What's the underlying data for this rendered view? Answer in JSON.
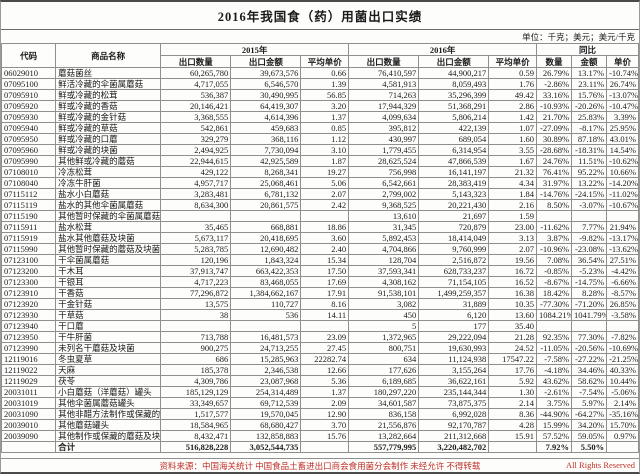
{
  "title": "2016年我国食（药）用菌出口实绩",
  "units_note": "单位：千克；美元；美元/千克",
  "header": {
    "code": "代码",
    "name": "商品名称",
    "group_2015": "2015年",
    "group_2016": "2016年",
    "group_yoy": "同比",
    "qty": "出口数量",
    "amount": "出口金额",
    "avg_price": "平均单价",
    "yoy_qty": "数量",
    "yoy_amount": "金额",
    "yoy_price": "单价"
  },
  "col_widths_pct": [
    8.5,
    16.5,
    11,
    11,
    7.5,
    11,
    11,
    7.5,
    5.5,
    5.5,
    5
  ],
  "chart_data": {
    "type": "table",
    "title": "2016年我国食（药）用菌出口实绩",
    "columns": [
      "代码",
      "商品名称",
      "2015年出口数量",
      "2015年出口金额",
      "2015年平均单价",
      "2016年出口数量",
      "2016年出口金额",
      "2016年平均单价",
      "同比数量",
      "同比金额",
      "同比单价"
    ]
  },
  "rows": [
    [
      "06029010",
      "蘑菇菌丝",
      "60,265,780",
      "39,673,576",
      "0.66",
      "76,410,597",
      "44,900,217",
      "0.59",
      "26.79%",
      "13.17%",
      "-10.74%"
    ],
    [
      "07095100",
      "鲜活冷藏的伞菌属蘑菇",
      "4,717,055",
      "6,546,570",
      "1.39",
      "4,581,913",
      "8,059,493",
      "1.76",
      "-2.86%",
      "23.11%",
      "26.74%"
    ],
    [
      "07095910",
      "鲜或冷藏的松茸",
      "536,387",
      "30,490,995",
      "56.85",
      "714,263",
      "35,296,399",
      "49.42",
      "33.16%",
      "15.76%",
      "-13.07%"
    ],
    [
      "07095920",
      "鲜或冷藏的香菇",
      "20,146,421",
      "64,419,307",
      "3.20",
      "17,944,329",
      "51,368,291",
      "2.86",
      "-10.93%",
      "-20.26%",
      "-10.47%"
    ],
    [
      "07095930",
      "鲜或冷藏的金针菇",
      "3,368,555",
      "4,614,396",
      "1.37",
      "4,099,634",
      "5,806,214",
      "1.42",
      "21.70%",
      "25.83%",
      "3.39%"
    ],
    [
      "07095940",
      "鲜或冷藏的草菇",
      "542,861",
      "459,683",
      "0.85",
      "395,812",
      "422,139",
      "1.07",
      "-27.09%",
      "-8.17%",
      "25.95%"
    ],
    [
      "07095950",
      "鲜或冷藏的口蘑",
      "329,279",
      "368,116",
      "1.12",
      "430,997",
      "689,054",
      "1.60",
      "30.89%",
      "87.18%",
      "43.01%"
    ],
    [
      "07095960",
      "鲜或冷藏的块菌",
      "2,494,925",
      "7,730,094",
      "3.10",
      "1,779,455",
      "6,314,954",
      "3.55",
      "-28.68%",
      "-18.31%",
      "14.54%"
    ],
    [
      "07095990",
      "其他鲜或冷藏的蘑菇",
      "22,944,615",
      "42,925,589",
      "1.87",
      "28,625,524",
      "47,866,539",
      "1.67",
      "24.76%",
      "11.51%",
      "-10.62%"
    ],
    [
      "07108010",
      "冷冻松茸",
      "429,122",
      "8,268,341",
      "19.27",
      "756,998",
      "16,141,197",
      "21.32",
      "76.41%",
      "95.22%",
      "10.66%"
    ],
    [
      "07108040",
      "冷冻牛肝菌",
      "4,957,717",
      "25,068,461",
      "5.06",
      "6,542,661",
      "28,383,419",
      "4.34",
      "31.97%",
      "13.22%",
      "-14.20%"
    ],
    [
      "07115112",
      "盐水小白蘑菇",
      "3,283,481",
      "6,781,132",
      "2.07",
      "2,799,002",
      "5,143,323",
      "1.84",
      "-14.76%",
      "-24.15%",
      "-11.02%"
    ],
    [
      "07115119",
      "盐水的其他伞菌属蘑菇",
      "8,634,300",
      "20,861,575",
      "2.42",
      "9,368,525",
      "20,221,430",
      "2.16",
      "8.50%",
      "-3.07%",
      "-10.67%"
    ],
    [
      "07115190",
      "其他暂时保藏的伞菌属蘑菇",
      "",
      "",
      "",
      "13,610",
      "21,697",
      "1.59",
      "",
      "",
      ""
    ],
    [
      "07115911",
      "盐水松茸",
      "35,465",
      "668,881",
      "18.86",
      "31,345",
      "720,879",
      "23.00",
      "-11.62%",
      "7.77%",
      "21.94%"
    ],
    [
      "07115919",
      "盐水其他蘑菇及块菌",
      "5,673,117",
      "20,418,695",
      "3.60",
      "5,892,453",
      "18,414,049",
      "3.13",
      "3.87%",
      "-9.82%",
      "-13.17%"
    ],
    [
      "07115990",
      "其他暂时保藏的蘑菇及块菌",
      "5,283,785",
      "12,690,482",
      "2.40",
      "4,704,866",
      "9,760,999",
      "2.07",
      "-10.96%",
      "-23.08%",
      "-13.62%"
    ],
    [
      "07123100",
      "干伞菌属蘑菇",
      "120,196",
      "1,843,324",
      "15.34",
      "128,704",
      "2,516,872",
      "19.56",
      "7.08%",
      "36.54%",
      "27.51%"
    ],
    [
      "07123200",
      "干木耳",
      "37,913,747",
      "663,422,353",
      "17.50",
      "37,593,341",
      "628,733,237",
      "16.72",
      "-0.85%",
      "-5.23%",
      "-4.42%"
    ],
    [
      "07123300",
      "干银耳",
      "4,717,223",
      "83,468,055",
      "17.69",
      "4,308,162",
      "71,154,105",
      "16.52",
      "-8.67%",
      "-14.75%",
      "-6.66%"
    ],
    [
      "07123910",
      "干香菇",
      "77,296,872",
      "1,384,662,167",
      "17.91",
      "91,538,101",
      "1,499,259,357",
      "16.38",
      "18.42%",
      "8.28%",
      "-8.57%"
    ],
    [
      "07123920",
      "干金针菇",
      "13,575",
      "110,727",
      "8.16",
      "3,082",
      "31,889",
      "10.35",
      "-77.30%",
      "-71.20%",
      "26.85%"
    ],
    [
      "07123930",
      "干草菇",
      "38",
      "536",
      "14.11",
      "450",
      "6,120",
      "13.60",
      "1084.21%",
      "1041.79%",
      "-3.58%"
    ],
    [
      "07123940",
      "干口蘑",
      "",
      "",
      "",
      "5",
      "177",
      "35.40",
      "",
      "",
      ""
    ],
    [
      "07123950",
      "干牛肝菌",
      "713,788",
      "16,481,573",
      "23.09",
      "1,372,965",
      "29,222,094",
      "21.28",
      "92.35%",
      "77.30%",
      "-7.82%"
    ],
    [
      "07123990",
      "未列名干蘑菇及块菌",
      "900,275",
      "24,713,255",
      "27.45",
      "800,751",
      "19,630,993",
      "24.52",
      "-11.05%",
      "-20.56%",
      "-10.69%"
    ],
    [
      "12119016",
      "冬虫夏草",
      "686",
      "15,285,963",
      "22282.74",
      "634",
      "11,124,938",
      "17547.22",
      "-7.58%",
      "-27.22%",
      "-21.25%"
    ],
    [
      "12119022",
      "天麻",
      "185,378",
      "2,346,538",
      "12.66",
      "177,626",
      "3,155,264",
      "17.76",
      "-4.18%",
      "34.46%",
      "40.33%"
    ],
    [
      "12119029",
      "茯苓",
      "4,309,786",
      "23,087,968",
      "5.36",
      "6,189,685",
      "36,622,161",
      "5.92",
      "43.62%",
      "58.62%",
      "10.44%"
    ],
    [
      "20031011",
      "小白蘑菇（洋蘑菇）罐头",
      "185,129,129",
      "254,314,489",
      "1.37",
      "180,297,220",
      "235,144,344",
      "1.30",
      "-2.61%",
      "-7.54%",
      "-5.06%"
    ],
    [
      "20031019",
      "其他伞菌属蘑菇罐头",
      "33,349,657",
      "69,712,539",
      "2.09",
      "34,601,587",
      "73,875,375",
      "2.14",
      "3.75%",
      "5.97%",
      "2.14%"
    ],
    [
      "20031090",
      "其他非醋方法制作或保藏的伞菌属蘑菇",
      "1,517,577",
      "19,570,045",
      "12.90",
      "836,158",
      "6,992,028",
      "8.36",
      "-44.90%",
      "-64.27%",
      "-35.16%"
    ],
    [
      "20039010",
      "其他蘑菇罐头",
      "18,584,965",
      "68,680,427",
      "3.70",
      "21,556,876",
      "92,170,787",
      "4.28",
      "15.99%",
      "34.20%",
      "15.70%"
    ],
    [
      "20039090",
      "其他制作或保藏的蘑菇及块菌",
      "8,432,471",
      "132,858,883",
      "15.76",
      "13,282,664",
      "211,312,668",
      "15.91",
      "57.52%",
      "59.05%",
      "0.97%"
    ]
  ],
  "total_row": [
    "",
    "合计",
    "516,828,228",
    "3,052,544,735",
    "",
    "557,779,995",
    "3,220,482,702",
    "",
    "7.92%",
    "5.50%",
    ""
  ],
  "footer": {
    "source": "资料来源：中国海关统计 中国食品土畜进出口商会食用菌分会制作 未经允许 不得转载",
    "rights": "All Rights Reserved"
  }
}
